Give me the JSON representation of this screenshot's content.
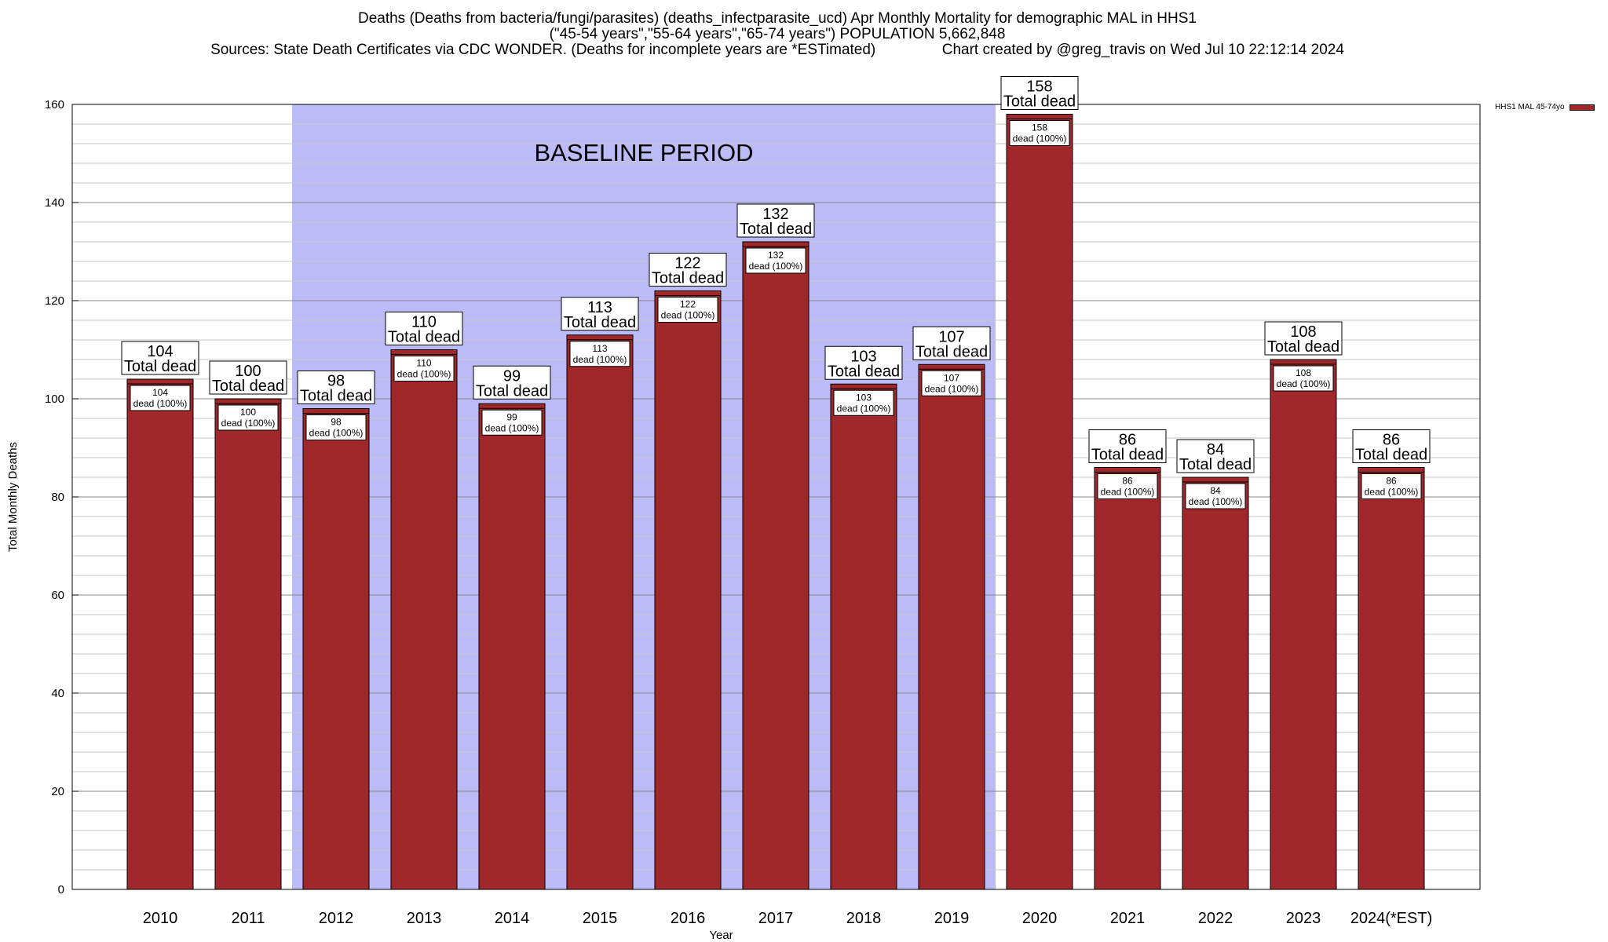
{
  "header": {
    "line1": "Deaths (Deaths from bacteria/fungi/parasites) (deaths_infectparasite_ucd) Apr Monthly Mortality for demographic MAL in HHS1",
    "line2": "(\"45-54 years\",\"55-64 years\",\"65-74 years\") POPULATION 5,662,848",
    "line3": "Sources: State Death Certificates via CDC WONDER. (Deaths for incomplete years are *ESTimated)                Chart created by @greg_travis on Wed Jul 10 22:12:14 2024"
  },
  "legend": {
    "label": "HHS1 MAL 45-74yo",
    "color": "#a0282a"
  },
  "chart_data": {
    "type": "bar",
    "title": "Deaths (Deaths from bacteria/fungi/parasites) (deaths_infectparasite_ucd) Apr Monthly Mortality for demographic MAL in HHS1",
    "xlabel": "Year",
    "ylabel": "Total Monthly Deaths",
    "ylim": [
      0,
      160
    ],
    "yticks": [
      0,
      20,
      40,
      60,
      80,
      100,
      120,
      140,
      160
    ],
    "grid": true,
    "legend_position": "top-right",
    "categories": [
      "2010",
      "2011",
      "2012",
      "2013",
      "2014",
      "2015",
      "2016",
      "2017",
      "2018",
      "2019",
      "2020",
      "2021",
      "2022",
      "2023",
      "2024(*EST)"
    ],
    "series": [
      {
        "name": "HHS1 MAL 45-74yo",
        "color": "#a0282a",
        "values": [
          104,
          100,
          98,
          110,
          99,
          113,
          122,
          132,
          103,
          107,
          158,
          86,
          84,
          108,
          86
        ]
      }
    ],
    "top_label_suffix": "Total dead",
    "inner_label_suffix": "dead (100%)",
    "baseline": {
      "label": "BASELINE PERIOD",
      "from": "2012",
      "to": "2019",
      "color": "#bbbbf7"
    }
  }
}
